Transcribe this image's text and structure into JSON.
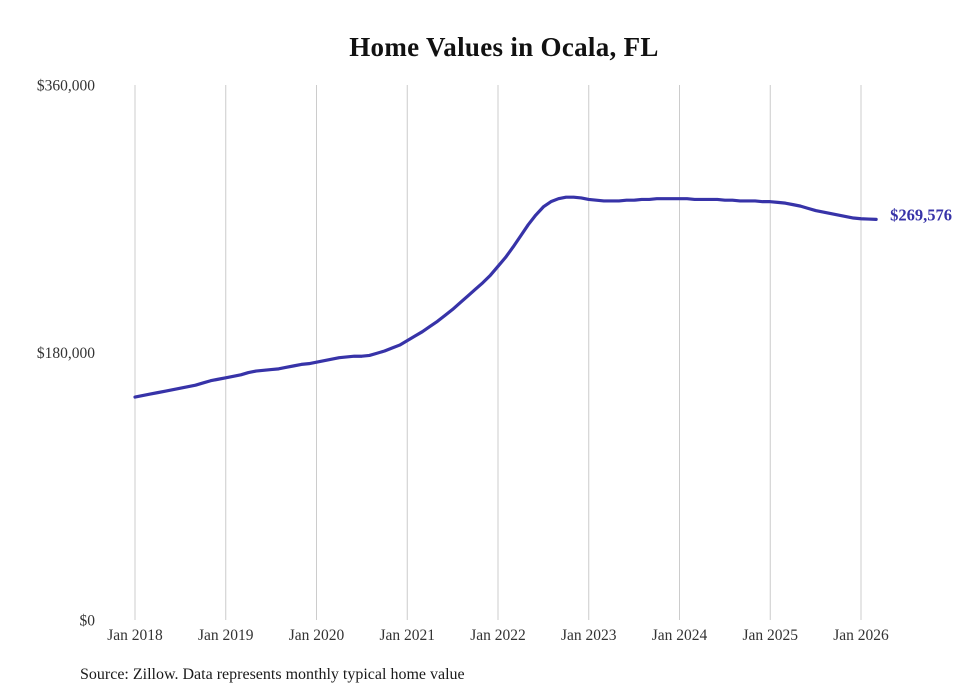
{
  "title": "Home Values in Ocala, FL",
  "source_note": "Source: Zillow. Data represents monthly typical home value",
  "end_label": "$269,576",
  "colors": {
    "line": "#3733a8",
    "grid": "#cccccc",
    "axis_text": "#333333",
    "title_text": "#111111"
  },
  "chart_data": {
    "type": "line",
    "title": "Home Values in Ocala, FL",
    "series_name": "Monthly typical home value",
    "x_tick_labels": [
      "Jan 2018",
      "Jan 2019",
      "Jan 2020",
      "Jan 2021",
      "Jan 2022",
      "Jan 2023",
      "Jan 2024",
      "Jan 2025",
      "Jan 2026"
    ],
    "x_tick_month_indices": [
      0,
      12,
      24,
      36,
      48,
      60,
      72,
      84,
      96
    ],
    "y_tick_labels": [
      "$0",
      "$180,000",
      "$360,000"
    ],
    "y_tick_values": [
      0,
      180000,
      360000
    ],
    "ylim": [
      0,
      360000
    ],
    "grid": "vertical-only",
    "legend": "none",
    "latest_value": 269576,
    "values_monthly": [
      150000,
      151000,
      152000,
      153000,
      154000,
      155000,
      156000,
      157000,
      158000,
      159500,
      161000,
      162000,
      163000,
      164000,
      165000,
      166500,
      167500,
      168000,
      168500,
      169000,
      170000,
      171000,
      172000,
      172500,
      173500,
      174500,
      175500,
      176500,
      177000,
      177500,
      177500,
      178000,
      179500,
      181000,
      183000,
      185000,
      188000,
      191000,
      194000,
      197500,
      201000,
      205000,
      209000,
      213500,
      218000,
      222500,
      227000,
      232000,
      238000,
      244000,
      251000,
      258500,
      266000,
      272500,
      278000,
      281500,
      283500,
      284500,
      284500,
      284000,
      283000,
      282500,
      282000,
      282000,
      282000,
      282500,
      282500,
      283000,
      283000,
      283500,
      283500,
      283500,
      283500,
      283500,
      283000,
      283000,
      283000,
      283000,
      282500,
      282500,
      282000,
      282000,
      282000,
      281500,
      281500,
      281000,
      280500,
      279500,
      278500,
      277000,
      275500,
      274500,
      273500,
      272500,
      271500,
      270500,
      270000,
      269800,
      269576
    ]
  }
}
